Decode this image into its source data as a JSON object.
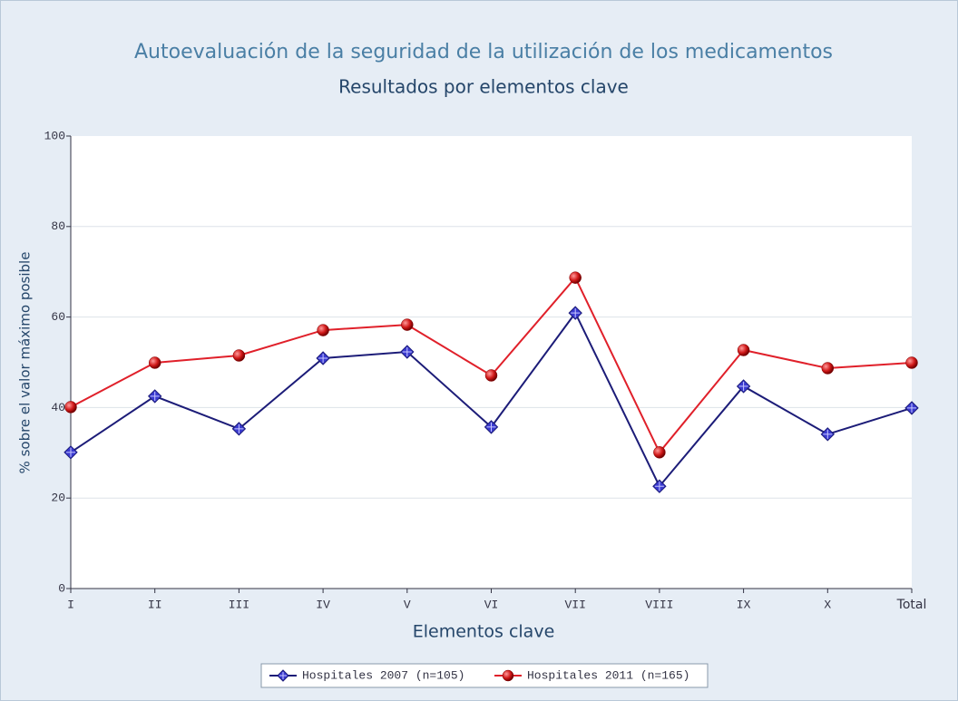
{
  "chart_data": {
    "type": "line",
    "title": "Autoevaluación de la seguridad de la utilización de los medicamentos",
    "subtitle": "Resultados por elementos clave",
    "x_label": "Elementos clave",
    "y_label": "% sobre el valor máximo posible",
    "categories": [
      "I",
      "II",
      "III",
      "IV",
      "V",
      "VI",
      "VII",
      "VIII",
      "IX",
      "X",
      "Total"
    ],
    "series": [
      {
        "name": "Hospitales 2007 (n=105)",
        "color": "#1c1c78",
        "marker": "diamond",
        "marker_color": "#3a3ad0",
        "values": [
          30.1,
          42.5,
          35.3,
          50.9,
          52.3,
          35.7,
          60.9,
          22.6,
          44.7,
          34.1,
          39.9
        ]
      },
      {
        "name": "Hospitales 2011 (n=165)",
        "color": "#e0202a",
        "marker": "circle",
        "marker_color": "#d01818",
        "values": [
          40.1,
          49.9,
          51.5,
          57.1,
          58.3,
          47.1,
          68.7,
          30.1,
          52.7,
          48.7,
          49.9
        ]
      }
    ],
    "ylim": [
      0,
      100
    ],
    "yticks": [
      0,
      20,
      40,
      60,
      80,
      100
    ],
    "grid": true,
    "legend": "bottom"
  }
}
